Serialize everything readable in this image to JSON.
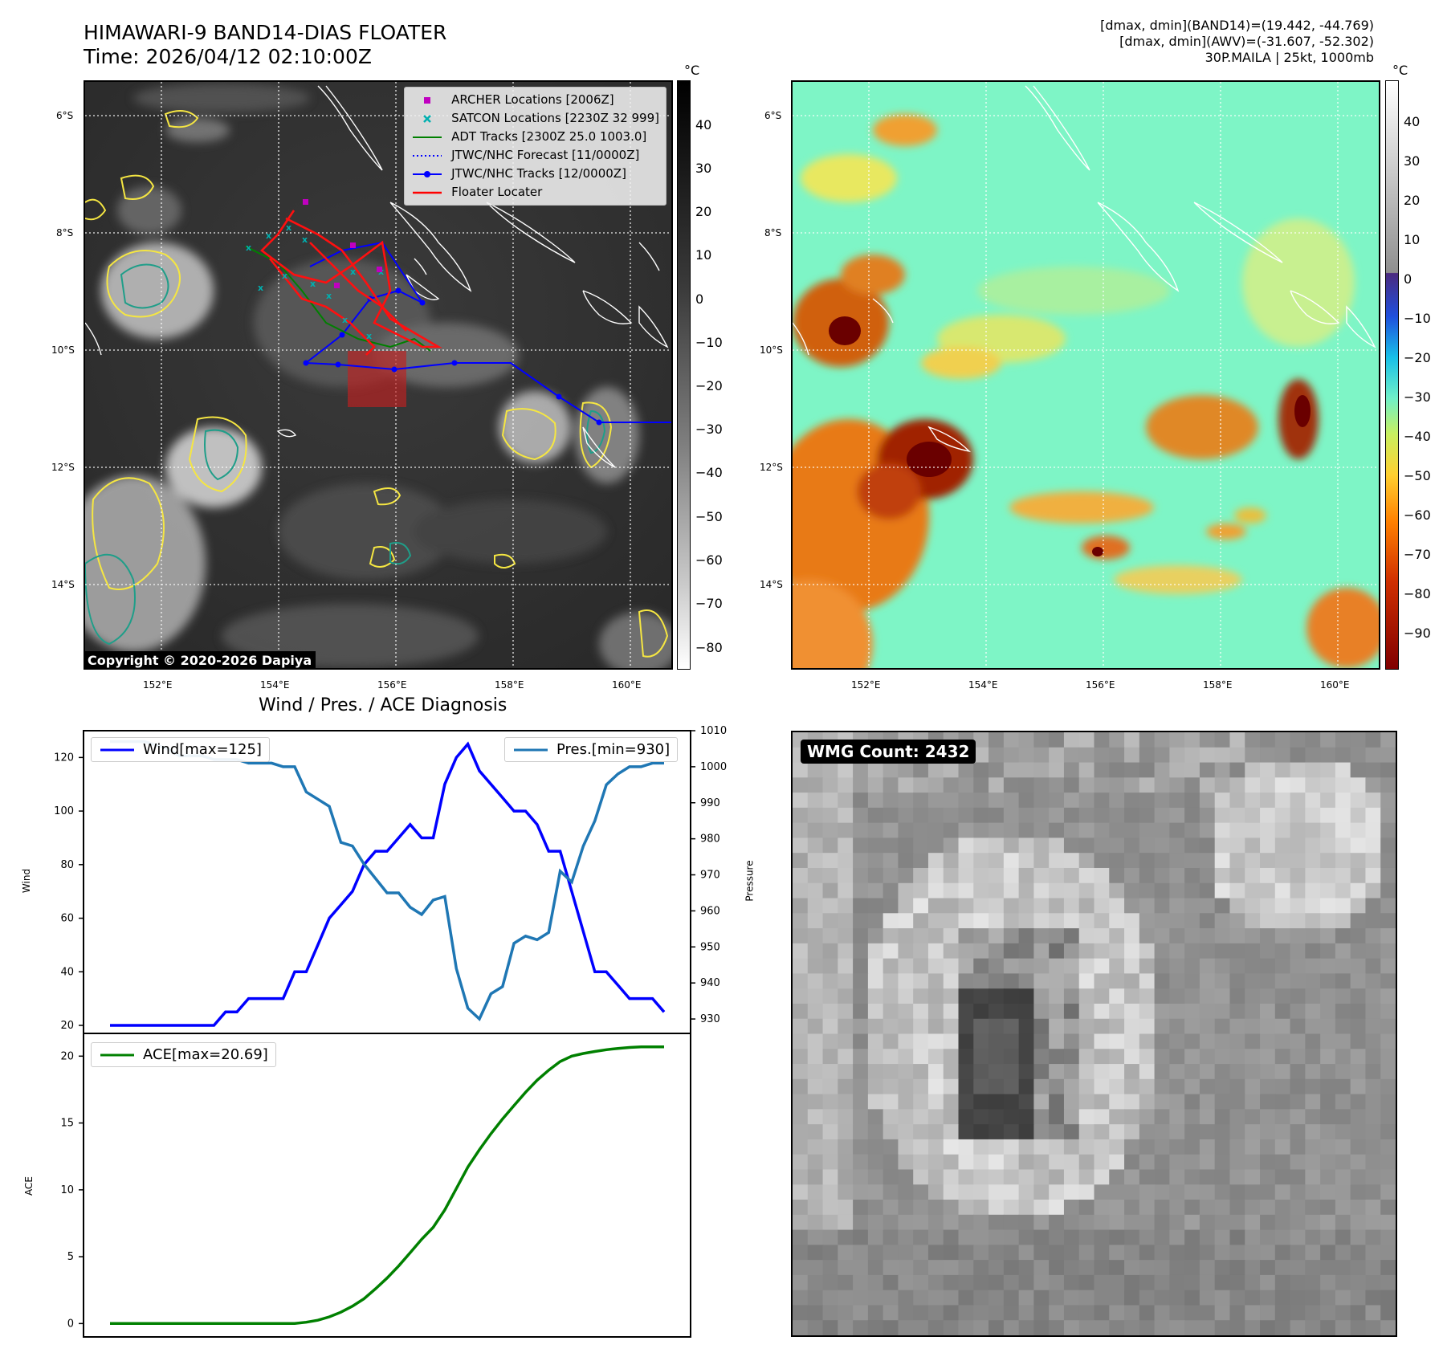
{
  "header": {
    "title_line1": "HIMAWARI-9 BAND14-DIAS FLOATER",
    "title_line2": "Time: 2026/04/12 02:10:00Z",
    "right_line1": "[dmax, dmin](BAND14)=(19.442, -44.769)",
    "right_line2": "[dmax, dmin](AWV)=(-31.607, -52.302)",
    "right_line3": "30P.MAILA | 25kt, 1000mb"
  },
  "map": {
    "lat_labels": [
      "6°S",
      "8°S",
      "10°S",
      "12°S",
      "14°S"
    ],
    "lon_labels": [
      "152°E",
      "154°E",
      "156°E",
      "158°E",
      "160°E"
    ],
    "copyright": "Copyright © 2020-2026 Dapiya",
    "legend": [
      {
        "label": "ARCHER Locations [2006Z]",
        "color": "#c000c0",
        "marker": "square"
      },
      {
        "label": "SATCON Locations [2230Z 32 999]",
        "color": "#00b0b0",
        "marker": "x"
      },
      {
        "label": "ADT Tracks [2300Z 25.0 1003.0]",
        "color": "#008000",
        "marker": "line"
      },
      {
        "label": "JTWC/NHC Forecast [11/0000Z]",
        "color": "#0000ff",
        "marker": "dotted"
      },
      {
        "label": "JTWC/NHC Tracks [12/0000Z]",
        "color": "#0000ff",
        "marker": "line-dot"
      },
      {
        "label": "Floater Locater",
        "color": "#ff0000",
        "marker": "line"
      }
    ]
  },
  "colorbar_left": {
    "unit": "°C",
    "ticks": [
      "40",
      "30",
      "20",
      "10",
      "0",
      "−10",
      "−20",
      "−30",
      "−40",
      "−50",
      "−60",
      "−70",
      "−80"
    ]
  },
  "colorbar_right": {
    "unit": "°C",
    "ticks": [
      "40",
      "30",
      "20",
      "10",
      "0",
      "−10",
      "−20",
      "−30",
      "−40",
      "−50",
      "−60",
      "−70",
      "−80",
      "−90"
    ]
  },
  "diagnosis": {
    "title": "Wind / Pres. / ACE Diagnosis"
  },
  "wmg": {
    "label": "WMG Count: 2432"
  },
  "colors": {
    "wind": "#0000ff",
    "pressure": "#1f77b4",
    "ace": "#008000"
  },
  "chart_data": [
    {
      "type": "line",
      "title": "Wind / Pres. / ACE Diagnosis",
      "ylabel": "Wind",
      "ylabel_right": "Pressure",
      "ylim": [
        17,
        130
      ],
      "ylim_right": [
        926,
        1010
      ],
      "yticks": [
        20,
        40,
        60,
        80,
        100,
        120
      ],
      "yticks_right": [
        930,
        940,
        950,
        960,
        970,
        980,
        990,
        1000,
        1010
      ],
      "series": [
        {
          "name": "Wind[max=125]",
          "axis": "left",
          "values": [
            20,
            20,
            20,
            20,
            20,
            20,
            20,
            20,
            20,
            20,
            25,
            25,
            30,
            30,
            30,
            30,
            40,
            40,
            50,
            60,
            65,
            70,
            80,
            85,
            85,
            90,
            95,
            90,
            90,
            110,
            120,
            125,
            115,
            110,
            105,
            100,
            100,
            95,
            85,
            85,
            70,
            55,
            40,
            40,
            35,
            30,
            30,
            30,
            25
          ]
        },
        {
          "name": "Pres.[min=930]",
          "axis": "right",
          "values": [
            1007,
            1007,
            1007,
            1007,
            1006,
            1005,
            1003,
            1003,
            1003,
            1002,
            1002,
            1002,
            1001,
            1001,
            1001,
            1000,
            1000,
            993,
            991,
            989,
            979,
            978,
            973,
            969,
            965,
            965,
            961,
            959,
            963,
            964,
            944,
            933,
            930,
            937,
            939,
            951,
            953,
            952,
            954,
            971,
            968,
            978,
            985,
            995,
            998,
            1000,
            1000,
            1001,
            1001
          ]
        }
      ]
    },
    {
      "type": "line",
      "ylabel": "ACE",
      "ylim": [
        -1,
        21.7
      ],
      "yticks": [
        0,
        5,
        10,
        15,
        20
      ],
      "series": [
        {
          "name": "ACE[max=20.69]",
          "values": [
            0,
            0,
            0,
            0,
            0,
            0,
            0,
            0,
            0,
            0,
            0,
            0,
            0,
            0,
            0,
            0,
            0,
            0.1,
            0.25,
            0.5,
            0.85,
            1.3,
            1.85,
            2.6,
            3.4,
            4.3,
            5.3,
            6.3,
            7.2,
            8.5,
            10.1,
            11.7,
            13.0,
            14.2,
            15.3,
            16.3,
            17.3,
            18.2,
            18.95,
            19.6,
            20.0,
            20.2,
            20.35,
            20.48,
            20.58,
            20.65,
            20.69,
            20.69,
            20.69
          ]
        }
      ]
    }
  ]
}
